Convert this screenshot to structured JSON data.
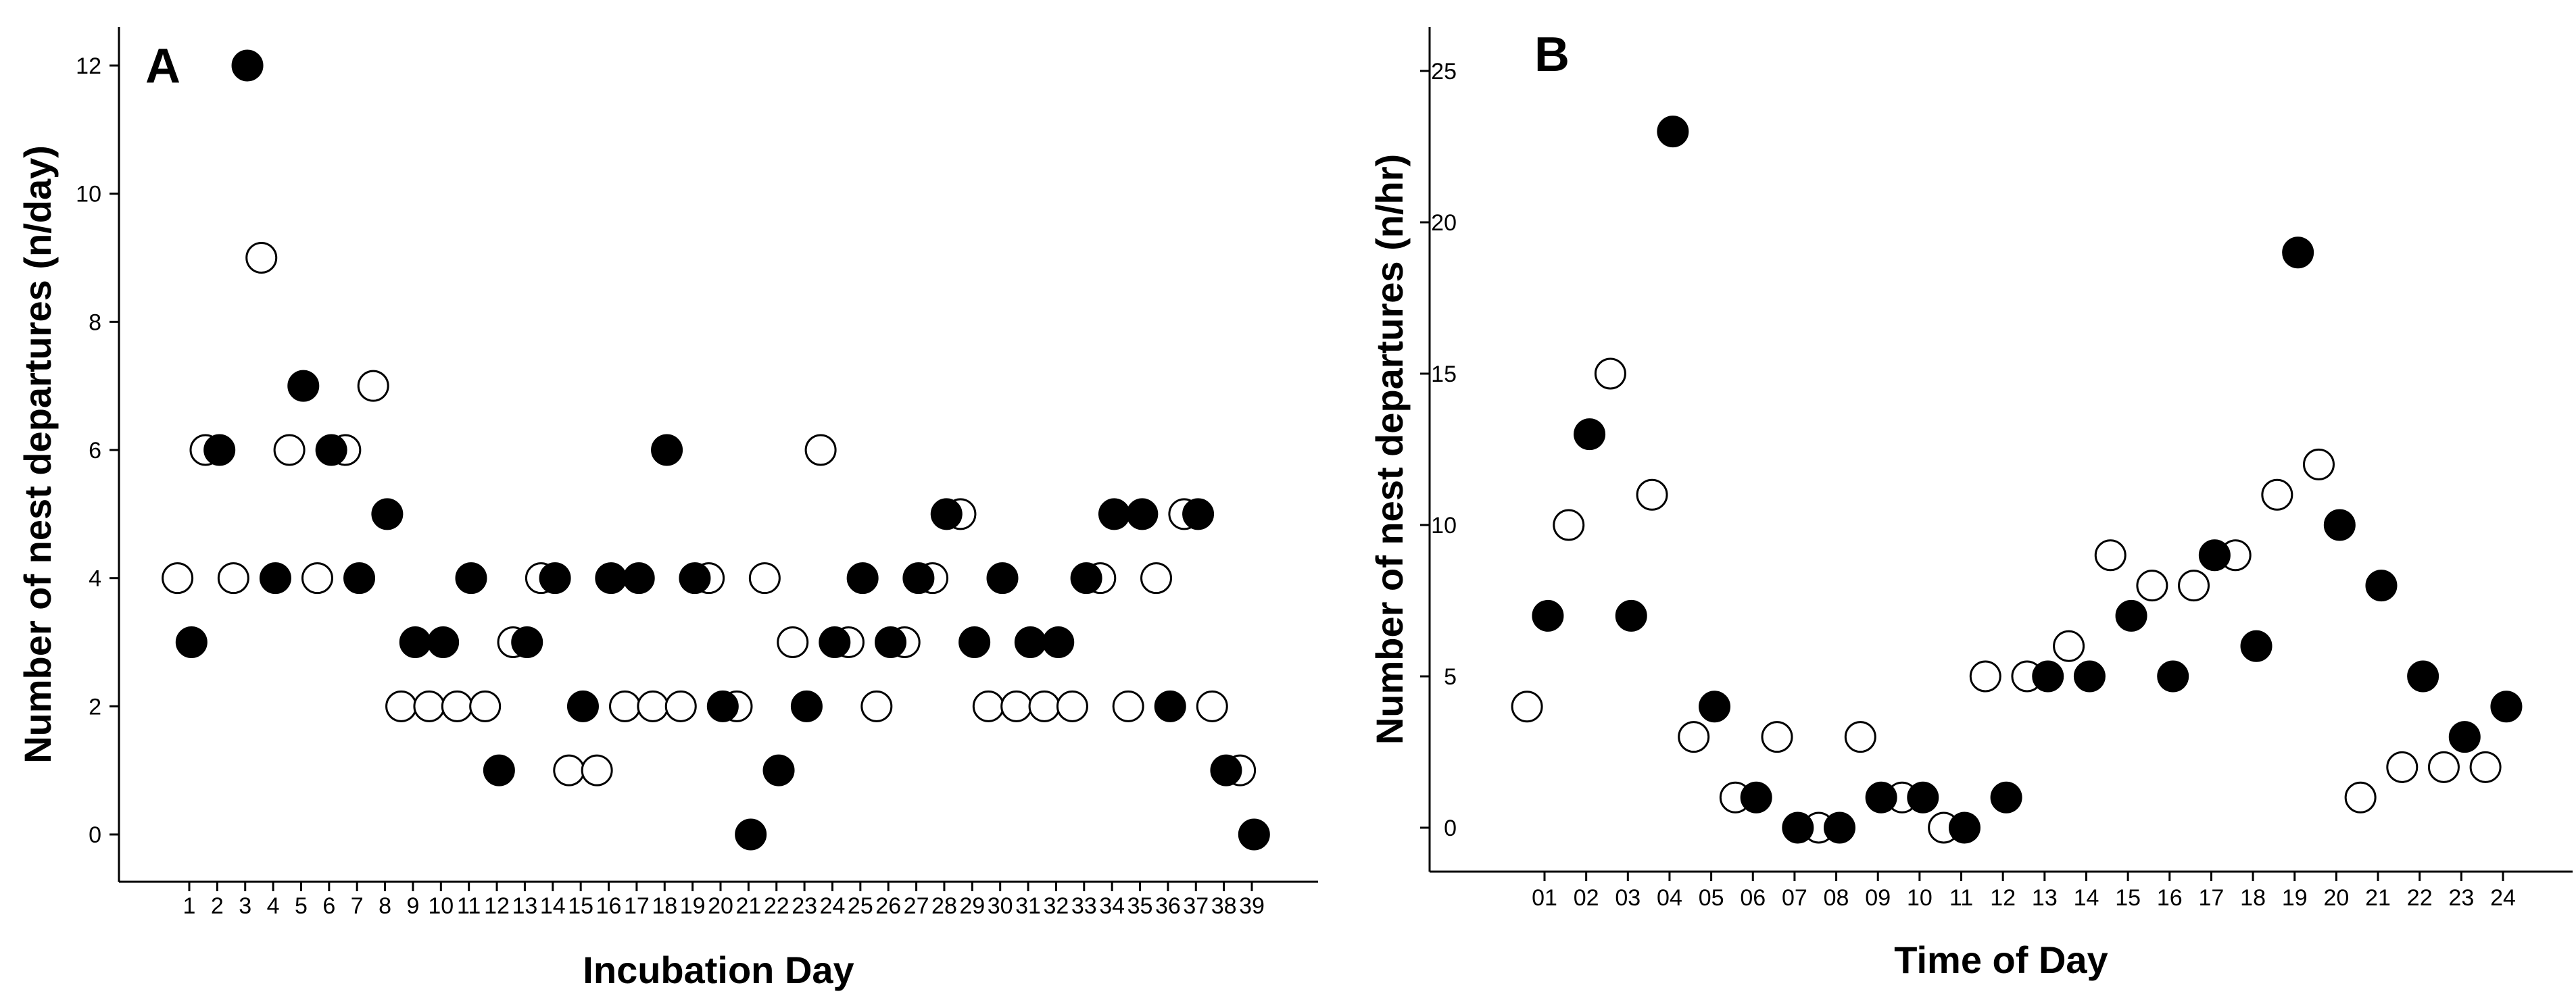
{
  "chart_data": [
    {
      "type": "scatter",
      "panel_label": "A",
      "xlabel": "Incubation Day",
      "ylabel": "Number of nest departures (n/day)",
      "ylim": [
        0,
        12
      ],
      "yticks": [
        0,
        2,
        4,
        6,
        8,
        10,
        12
      ],
      "categories": [
        "1",
        "2",
        "3",
        "4",
        "5",
        "6",
        "7",
        "8",
        "9",
        "10",
        "11",
        "12",
        "13",
        "14",
        "15",
        "16",
        "17",
        "18",
        "19",
        "20",
        "21",
        "22",
        "23",
        "24",
        "25",
        "26",
        "27",
        "28",
        "29",
        "30",
        "31",
        "32",
        "33",
        "34",
        "35",
        "36",
        "37",
        "38",
        "39"
      ],
      "series": [
        {
          "name": "open",
          "fill": "#ffffff",
          "values": [
            4,
            6,
            4,
            9,
            6,
            4,
            6,
            7,
            2,
            2,
            2,
            2,
            3,
            4,
            1,
            1,
            2,
            2,
            2,
            4,
            2,
            4,
            3,
            6,
            3,
            2,
            3,
            4,
            5,
            2,
            2,
            2,
            2,
            4,
            2,
            4,
            5,
            2,
            1
          ]
        },
        {
          "name": "filled",
          "fill": "#000000",
          "values": [
            3,
            6,
            12,
            4,
            7,
            6,
            4,
            5,
            3,
            3,
            4,
            1,
            3,
            4,
            2,
            4,
            4,
            6,
            4,
            2,
            0,
            1,
            2,
            3,
            4,
            3,
            4,
            5,
            3,
            4,
            3,
            3,
            4,
            5,
            5,
            2,
            5,
            1,
            0
          ]
        }
      ]
    },
    {
      "type": "scatter",
      "panel_label": "B",
      "xlabel": "Time of Day",
      "ylabel": "Number of nest departures (n/hr)",
      "ylim": [
        0,
        25
      ],
      "yticks": [
        0,
        5,
        10,
        15,
        20,
        25
      ],
      "categories": [
        "01",
        "02",
        "03",
        "04",
        "05",
        "06",
        "07",
        "08",
        "09",
        "10",
        "11",
        "12",
        "13",
        "14",
        "15",
        "16",
        "17",
        "18",
        "19",
        "20",
        "21",
        "22",
        "23",
        "24"
      ],
      "series": [
        {
          "name": "open",
          "fill": "#ffffff",
          "values": [
            4,
            10,
            15,
            11,
            3,
            1,
            3,
            0,
            3,
            1,
            0,
            5,
            5,
            6,
            9,
            8,
            8,
            9,
            11,
            12,
            1,
            2,
            2,
            2
          ]
        },
        {
          "name": "filled",
          "fill": "#000000",
          "values": [
            7,
            13,
            7,
            23,
            4,
            1,
            0,
            0,
            1,
            1,
            0,
            1,
            5,
            5,
            7,
            5,
            9,
            6,
            19,
            10,
            8,
            5,
            3,
            4
          ]
        }
      ]
    }
  ]
}
